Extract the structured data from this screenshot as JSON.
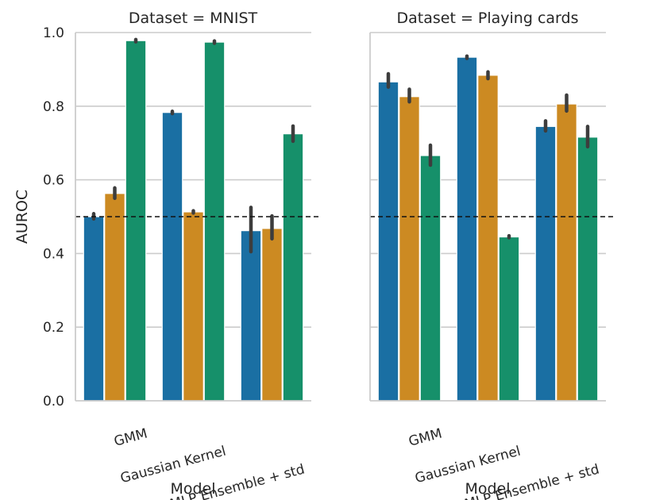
{
  "chart_data": [
    {
      "type": "bar",
      "title": "Dataset = MNIST",
      "xlabel": "Model",
      "ylabel": "AUROC",
      "ylim": [
        0,
        1
      ],
      "yticks": [
        "0.0",
        "0.2",
        "0.4",
        "0.6",
        "0.8",
        "1.0"
      ],
      "grid": "horizontal",
      "categories": [
        "GMM",
        "Gaussian Kernel",
        "MLP Ensemble + std"
      ],
      "series": [
        {
          "values": [
            0.5,
            0.783,
            0.462
          ],
          "err_low": [
            0.494,
            0.78,
            0.405
          ],
          "err_high": [
            0.508,
            0.786,
            0.525
          ],
          "color": "#1a6fa3"
        },
        {
          "values": [
            0.563,
            0.513,
            0.468
          ],
          "err_low": [
            0.55,
            0.51,
            0.44
          ],
          "err_high": [
            0.578,
            0.516,
            0.502
          ],
          "color": "#cc8a22"
        },
        {
          "values": [
            0.978,
            0.974,
            0.725
          ],
          "err_low": [
            0.975,
            0.971,
            0.705
          ],
          "err_high": [
            0.981,
            0.977,
            0.746
          ],
          "color": "#16906a"
        }
      ],
      "reference_line": 0.5
    },
    {
      "type": "bar",
      "title": "Dataset = Playing cards",
      "xlabel": "Model",
      "ylabel": "",
      "ylim": [
        0,
        1
      ],
      "grid": "horizontal",
      "categories": [
        "GMM",
        "Gaussian Kernel",
        "MLP Ensemble + std"
      ],
      "series": [
        {
          "values": [
            0.866,
            0.933,
            0.745
          ],
          "err_low": [
            0.852,
            0.93,
            0.733
          ],
          "err_high": [
            0.888,
            0.936,
            0.76
          ],
          "color": "#1a6fa3"
        },
        {
          "values": [
            0.826,
            0.884,
            0.806
          ],
          "err_low": [
            0.812,
            0.875,
            0.787
          ],
          "err_high": [
            0.846,
            0.893,
            0.83
          ],
          "color": "#cc8a22"
        },
        {
          "values": [
            0.666,
            0.445,
            0.716
          ],
          "err_low": [
            0.64,
            0.443,
            0.69
          ],
          "err_high": [
            0.694,
            0.448,
            0.745
          ],
          "color": "#16906a"
        }
      ],
      "reference_line": 0.5
    }
  ]
}
